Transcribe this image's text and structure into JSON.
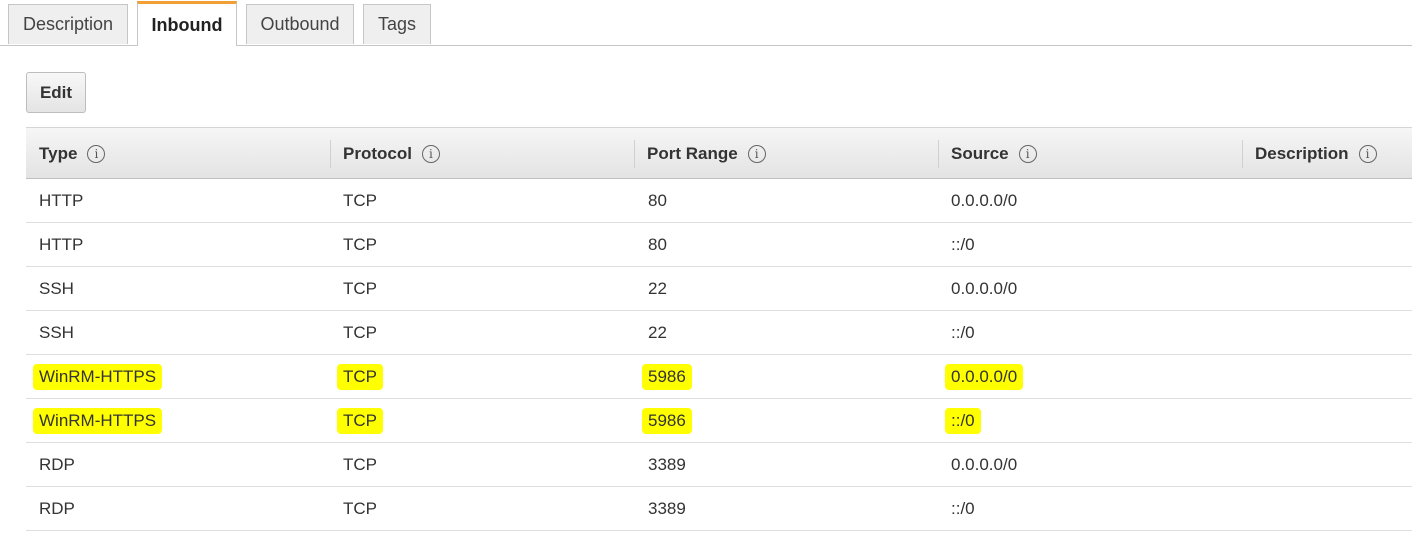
{
  "tabs": [
    {
      "label": "Description",
      "active": false
    },
    {
      "label": "Inbound",
      "active": true
    },
    {
      "label": "Outbound",
      "active": false
    },
    {
      "label": "Tags",
      "active": false
    }
  ],
  "toolbar": {
    "edit_label": "Edit"
  },
  "table": {
    "columns": [
      "Type",
      "Protocol",
      "Port Range",
      "Source",
      "Description"
    ],
    "info_glyph": "i",
    "rows": [
      {
        "type": "HTTP",
        "protocol": "TCP",
        "port_range": "80",
        "source": "0.0.0.0/0",
        "description": "",
        "highlighted": false
      },
      {
        "type": "HTTP",
        "protocol": "TCP",
        "port_range": "80",
        "source": "::/0",
        "description": "",
        "highlighted": false
      },
      {
        "type": "SSH",
        "protocol": "TCP",
        "port_range": "22",
        "source": "0.0.0.0/0",
        "description": "",
        "highlighted": false
      },
      {
        "type": "SSH",
        "protocol": "TCP",
        "port_range": "22",
        "source": "::/0",
        "description": "",
        "highlighted": false
      },
      {
        "type": "WinRM-HTTPS",
        "protocol": "TCP",
        "port_range": "5986",
        "source": "0.0.0.0/0",
        "description": "",
        "highlighted": true
      },
      {
        "type": "WinRM-HTTPS",
        "protocol": "TCP",
        "port_range": "5986",
        "source": "::/0",
        "description": "",
        "highlighted": true
      },
      {
        "type": "RDP",
        "protocol": "TCP",
        "port_range": "3389",
        "source": "0.0.0.0/0",
        "description": "",
        "highlighted": false
      },
      {
        "type": "RDP",
        "protocol": "TCP",
        "port_range": "3389",
        "source": "::/0",
        "description": "",
        "highlighted": false
      }
    ]
  },
  "colors": {
    "active_tab_accent": "#f0a035",
    "highlight": "#ffff00"
  }
}
